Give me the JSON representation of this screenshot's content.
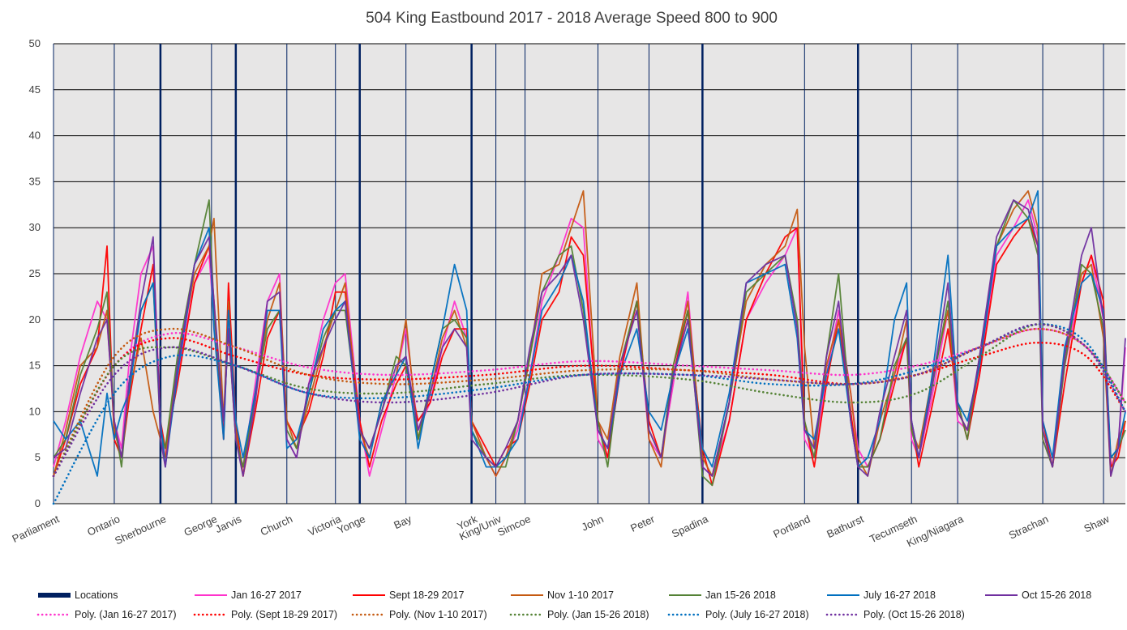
{
  "chart_data": {
    "type": "line",
    "title": "504 King Eastbound 2017 - 2018 Average Speed 800 to 900",
    "xlabel": "",
    "ylabel": "",
    "ylim": [
      0,
      50
    ],
    "yticks": [
      0,
      5,
      10,
      15,
      20,
      25,
      30,
      35,
      40,
      45,
      50
    ],
    "xlim": [
      0,
      441
    ],
    "grid": "horizontal",
    "legend_position": "bottom",
    "locations_series_name": "Locations",
    "locations": [
      {
        "name": "Parliament",
        "x": 0,
        "major": false
      },
      {
        "name": "Ontario",
        "x": 25,
        "major": false
      },
      {
        "name": "Sherbourne",
        "x": 44,
        "major": true
      },
      {
        "name": "George",
        "x": 65,
        "major": false
      },
      {
        "name": "Jarvis",
        "x": 75,
        "major": true
      },
      {
        "name": "Church",
        "x": 96,
        "major": false
      },
      {
        "name": "Victoria",
        "x": 116,
        "major": false
      },
      {
        "name": "Yonge",
        "x": 126,
        "major": true
      },
      {
        "name": "Bay",
        "x": 145,
        "major": false
      },
      {
        "name": "York",
        "x": 172,
        "major": true
      },
      {
        "name": "King/Univ",
        "x": 182,
        "major": false
      },
      {
        "name": "Simcoe",
        "x": 194,
        "major": false
      },
      {
        "name": "John",
        "x": 224,
        "major": false
      },
      {
        "name": "Peter",
        "x": 245,
        "major": false
      },
      {
        "name": "Spadina",
        "x": 267,
        "major": true
      },
      {
        "name": "Portland",
        "x": 309,
        "major": false
      },
      {
        "name": "Bathurst",
        "x": 331,
        "major": true
      },
      {
        "name": "Tecumseth",
        "x": 353,
        "major": false
      },
      {
        "name": "King/Niagara",
        "x": 372,
        "major": false
      },
      {
        "name": "Strachan",
        "x": 407,
        "major": false
      },
      {
        "name": "Shaw",
        "x": 432,
        "major": false
      }
    ],
    "x": [
      0,
      5,
      11,
      18,
      22,
      25,
      28,
      31,
      36,
      41,
      44,
      46,
      51,
      58,
      64,
      66,
      70,
      72,
      75,
      78,
      83,
      88,
      93,
      96,
      100,
      105,
      111,
      116,
      120,
      126,
      130,
      135,
      141,
      145,
      150,
      155,
      160,
      165,
      170,
      172,
      178,
      182,
      186,
      191,
      196,
      201,
      208,
      213,
      218,
      224,
      228,
      233,
      240,
      245,
      250,
      255,
      261,
      267,
      271,
      278,
      285,
      293,
      301,
      306,
      309,
      313,
      318,
      323,
      328,
      331,
      335,
      340,
      346,
      351,
      353,
      356,
      361,
      368,
      372,
      376,
      381,
      388,
      395,
      401,
      405,
      407,
      411,
      416,
      423,
      427,
      432,
      435,
      438,
      441
    ],
    "series": [
      {
        "name": "Jan 16-27 2017",
        "color": "#ff33cc",
        "values": [
          4,
          9,
          16,
          22,
          20,
          9,
          6,
          15,
          25,
          28,
          9,
          5,
          14,
          24,
          27,
          20,
          8,
          20,
          7,
          4,
          13,
          22,
          25,
          7,
          5,
          13,
          20,
          24,
          25,
          9,
          3,
          8,
          14,
          19,
          8,
          11,
          17,
          22,
          18,
          9,
          5,
          3,
          5,
          8,
          14,
          22,
          27,
          31,
          30,
          7,
          5,
          14,
          22,
          7,
          5,
          13,
          23,
          4,
          3,
          9,
          20,
          24,
          27,
          30,
          7,
          5,
          14,
          21,
          12,
          6,
          4,
          7,
          14,
          18,
          7,
          5,
          11,
          21,
          9,
          8,
          14,
          27,
          30,
          33,
          29,
          7,
          4,
          15,
          24,
          27,
          20,
          4,
          6,
          17
        ]
      },
      {
        "name": "Sept 18-29 2017",
        "color": "#ff0000",
        "values": [
          3,
          7,
          13,
          17,
          28,
          7,
          5,
          11,
          19,
          26,
          9,
          6,
          13,
          24,
          28,
          22,
          7,
          24,
          9,
          3,
          10,
          18,
          21,
          9,
          7,
          10,
          16,
          23,
          23,
          9,
          4,
          9,
          13,
          15,
          9,
          11,
          16,
          19,
          19,
          9,
          6,
          4,
          6,
          7,
          13,
          20,
          23,
          29,
          27,
          9,
          5,
          14,
          22,
          9,
          5,
          14,
          21,
          6,
          2,
          9,
          20,
          25,
          29,
          30,
          9,
          4,
          13,
          20,
          10,
          4,
          4,
          7,
          13,
          18,
          9,
          4,
          10,
          19,
          11,
          7,
          14,
          26,
          29,
          31,
          28,
          9,
          4,
          13,
          24,
          27,
          22,
          4,
          5,
          9
        ]
      },
      {
        "name": "Nov 1-10 2017",
        "color": "#c55a11",
        "values": [
          3,
          8,
          15,
          17,
          21,
          8,
          5,
          12,
          18,
          10,
          7,
          5,
          15,
          25,
          28,
          31,
          9,
          22,
          8,
          3,
          12,
          20,
          24,
          9,
          6,
          11,
          17,
          21,
          24,
          8,
          5,
          11,
          14,
          20,
          7,
          12,
          18,
          21,
          17,
          9,
          5,
          3,
          5,
          9,
          16,
          25,
          26,
          30,
          34,
          9,
          7,
          16,
          24,
          7,
          4,
          15,
          22,
          5,
          3,
          11,
          22,
          26,
          28,
          32,
          17,
          6,
          15,
          20,
          12,
          5,
          3,
          9,
          14,
          20,
          8,
          6,
          13,
          21,
          10,
          8,
          15,
          28,
          32,
          34,
          30,
          8,
          4,
          16,
          25,
          26,
          18,
          3,
          7,
          9
        ]
      },
      {
        "name": "Jan 15-26 2018",
        "color": "#548235",
        "values": [
          5,
          7,
          14,
          19,
          23,
          9,
          4,
          13,
          21,
          24,
          8,
          6,
          16,
          26,
          33,
          21,
          9,
          19,
          7,
          4,
          12,
          19,
          21,
          8,
          6,
          12,
          18,
          21,
          21,
          8,
          6,
          10,
          16,
          15,
          7,
          13,
          19,
          20,
          18,
          8,
          5,
          4,
          4,
          9,
          16,
          23,
          27,
          28,
          21,
          9,
          4,
          15,
          22,
          8,
          5,
          15,
          21,
          3,
          2,
          11,
          23,
          25,
          27,
          20,
          9,
          5,
          16,
          25,
          9,
          4,
          4,
          7,
          15,
          18,
          8,
          5,
          12,
          22,
          11,
          7,
          16,
          28,
          33,
          31,
          27,
          7,
          4,
          15,
          26,
          25,
          19,
          5,
          6,
          8
        ]
      },
      {
        "name": "July 16-27 2018",
        "color": "#0070c0",
        "values": [
          9,
          7,
          9,
          3,
          12,
          7,
          10,
          12,
          21,
          24,
          9,
          4,
          14,
          26,
          30,
          19,
          7,
          21,
          9,
          5,
          12,
          21,
          21,
          6,
          7,
          12,
          19,
          21,
          22,
          7,
          5,
          11,
          14,
          16,
          6,
          13,
          19,
          26,
          21,
          8,
          4,
          4,
          5,
          7,
          14,
          21,
          24,
          27,
          22,
          8,
          6,
          14,
          19,
          10,
          8,
          14,
          19,
          6,
          4,
          12,
          24,
          25,
          26,
          18,
          8,
          7,
          14,
          19,
          9,
          4,
          5,
          9,
          20,
          24,
          9,
          5,
          13,
          27,
          11,
          9,
          15,
          28,
          30,
          31,
          34,
          9,
          5,
          17,
          24,
          25,
          21,
          5,
          6,
          10
        ]
      },
      {
        "name": "Oct 15-26 2018",
        "color": "#7030a0",
        "values": [
          5,
          6,
          12,
          18,
          20,
          9,
          5,
          13,
          22,
          29,
          7,
          4,
          15,
          26,
          29,
          22,
          9,
          19,
          7,
          3,
          11,
          22,
          23,
          7,
          5,
          13,
          17,
          20,
          22,
          8,
          6,
          10,
          15,
          16,
          8,
          12,
          17,
          19,
          17,
          7,
          5,
          4,
          6,
          9,
          17,
          23,
          25,
          27,
          20,
          8,
          6,
          15,
          21,
          8,
          5,
          14,
          20,
          4,
          3,
          11,
          24,
          26,
          27,
          19,
          8,
          6,
          16,
          22,
          9,
          4,
          3,
          10,
          16,
          21,
          9,
          5,
          12,
          24,
          10,
          8,
          16,
          29,
          33,
          32,
          28,
          8,
          4,
          16,
          27,
          30,
          20,
          3,
          6,
          18
        ]
      }
    ],
    "trend_x": [
      0,
      25,
      48,
      75,
      105,
      138,
      178,
      218,
      261,
      295,
      328,
      355,
      381,
      405,
      425,
      441
    ],
    "trendlines": [
      {
        "name": "Poly. (Jan 16-27 2017)",
        "color": "#ff33cc",
        "values": [
          3,
          15,
          18.5,
          17,
          14.8,
          14,
          14.5,
          15.5,
          15,
          14.5,
          14,
          15,
          17,
          19,
          17,
          11
        ]
      },
      {
        "name": "Poly. (Sept 18-29 2017)",
        "color": "#ff0000",
        "values": [
          3,
          15,
          18,
          16,
          14,
          13.5,
          14,
          15,
          14.5,
          14,
          13,
          14,
          16,
          17.5,
          16,
          10
        ]
      },
      {
        "name": "Poly. (Nov 1-10 2017)",
        "color": "#c55a11",
        "values": [
          3,
          16,
          19,
          17,
          14,
          13,
          13.5,
          14.5,
          14.5,
          13.5,
          13,
          14,
          17,
          19,
          17,
          11
        ]
      },
      {
        "name": "Poly. (Jan 15-26 2018)",
        "color": "#548235",
        "values": [
          3,
          15,
          17,
          15,
          12.5,
          12,
          13,
          14,
          13.5,
          12,
          11,
          12,
          16,
          19.5,
          17,
          11
        ]
      },
      {
        "name": "Poly. (July 16-27 2018)",
        "color": "#0070c0",
        "values": [
          0,
          12,
          16,
          15,
          12,
          11.5,
          12.5,
          14,
          14,
          13,
          13,
          14.5,
          17,
          19.5,
          17.5,
          10
        ]
      },
      {
        "name": "Poly. (Oct 15-26 2018)",
        "color": "#7030a0",
        "values": [
          3,
          14,
          17,
          15,
          12,
          11,
          12,
          14,
          14,
          13.5,
          13,
          14,
          17,
          19.5,
          17,
          10
        ]
      }
    ],
    "colors": {
      "locations": "#002060",
      "plot_bg": "#e7e6e6",
      "grid": "#000000"
    }
  }
}
